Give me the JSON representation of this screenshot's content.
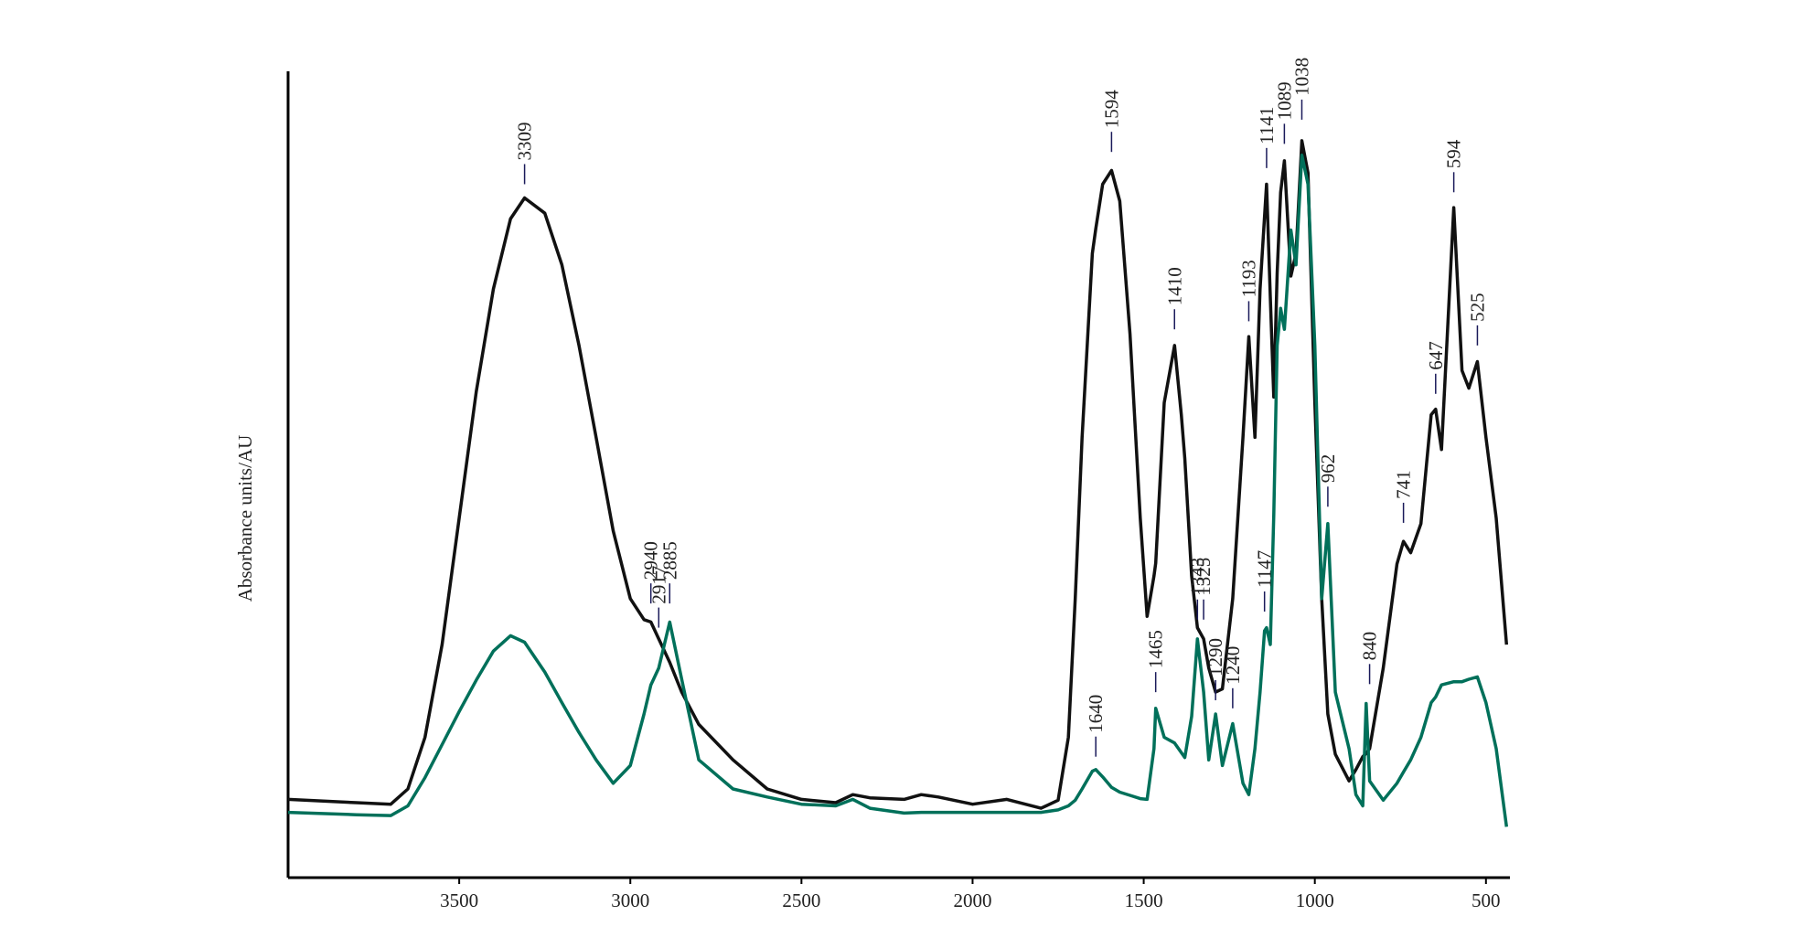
{
  "chart_data": {
    "type": "line",
    "y_label": "Absorbance  units/AU",
    "xlim": [
      4000,
      430
    ],
    "xticks": [
      3500,
      3000,
      2500,
      2000,
      1500,
      1000,
      500
    ],
    "ylim": [
      0,
      100
    ],
    "x": [
      4000,
      3800,
      3700,
      3650,
      3600,
      3550,
      3500,
      3450,
      3400,
      3350,
      3309,
      3250,
      3200,
      3150,
      3100,
      3050,
      3000,
      2960,
      2940,
      2917,
      2885,
      2850,
      2800,
      2700,
      2600,
      2500,
      2400,
      2350,
      2300,
      2200,
      2150,
      2100,
      2000,
      1900,
      1800,
      1750,
      1720,
      1700,
      1680,
      1650,
      1640,
      1620,
      1594,
      1570,
      1540,
      1510,
      1490,
      1470,
      1465,
      1440,
      1410,
      1390,
      1380,
      1360,
      1343,
      1325,
      1310,
      1290,
      1270,
      1240,
      1210,
      1193,
      1175,
      1160,
      1147,
      1141,
      1130,
      1120,
      1110,
      1100,
      1089,
      1070,
      1055,
      1038,
      1020,
      1000,
      980,
      962,
      940,
      900,
      880,
      860,
      850,
      840,
      800,
      760,
      741,
      720,
      690,
      660,
      647,
      630,
      594,
      570,
      550,
      525,
      500,
      470,
      440
    ],
    "series": [
      {
        "color": "#111111",
        "values": [
          9.7,
          9.3,
          9.1,
          11,
          17.4,
          28.9,
          44.6,
          60.3,
          73,
          81.7,
          84.3,
          82.4,
          76,
          66,
          54.6,
          43,
          34.6,
          32,
          31.7,
          29.6,
          26.7,
          23,
          19,
          14.6,
          11,
          9.7,
          9.3,
          10.3,
          9.9,
          9.7,
          10.3,
          10,
          9.1,
          9.7,
          8.6,
          9.6,
          17.4,
          34.6,
          54.6,
          77.4,
          80.5,
          86,
          87.7,
          83.9,
          67.4,
          44.6,
          32.4,
          37.4,
          39,
          58.9,
          66,
          57.4,
          52,
          37.4,
          31,
          29.6,
          26,
          23,
          23.4,
          34.6,
          54.6,
          67.1,
          54.6,
          73,
          82,
          86,
          72,
          59.6,
          75,
          85,
          88.9,
          74.6,
          77.4,
          91.4,
          87.4,
          58.9,
          34.6,
          20.3,
          15.3,
          12,
          13.4,
          15,
          15.4,
          16,
          26,
          38.9,
          41.7,
          40.3,
          43.9,
          57.4,
          58.1,
          53.1,
          83.1,
          62.9,
          60.7,
          64,
          54.6,
          44.6,
          28.9
        ]
      },
      {
        "color": "#00705a",
        "values": [
          8.1,
          7.8,
          7.7,
          8.9,
          12.4,
          16.5,
          20.6,
          24.5,
          28.1,
          30,
          29.2,
          25.5,
          21.7,
          18,
          14.6,
          11.7,
          13.9,
          20.3,
          23.9,
          26,
          31.7,
          24.6,
          14.6,
          11,
          10,
          9.1,
          8.9,
          9.7,
          8.6,
          8,
          8.1,
          8.1,
          8.1,
          8.1,
          8.1,
          8.4,
          8.9,
          9.6,
          11,
          13.2,
          13.4,
          12.5,
          11.2,
          10.6,
          10.2,
          9.8,
          9.7,
          16,
          21,
          17.4,
          16.7,
          15.5,
          14.9,
          20,
          29.6,
          23,
          14.6,
          20.3,
          13.9,
          19.1,
          11.7,
          10.3,
          16,
          23,
          30.6,
          31,
          28.9,
          45,
          66,
          70.6,
          68,
          80.3,
          76,
          89.6,
          86,
          66,
          34.6,
          43.9,
          23,
          16,
          10.3,
          8.9,
          21.6,
          12,
          9.6,
          11.7,
          13.1,
          14.6,
          17.4,
          21.7,
          22.4,
          23.9,
          24.3,
          24.3,
          24.6,
          24.9,
          21.7,
          16,
          6.3
        ]
      }
    ],
    "annotations": [
      {
        "text": "3309",
        "x": 3309,
        "y": 86
      },
      {
        "text": "2940",
        "x": 2940,
        "y": 34
      },
      {
        "text": "2917",
        "x": 2917,
        "y": 31
      },
      {
        "text": "2885",
        "x": 2885,
        "y": 34
      },
      {
        "text": "1594",
        "x": 1594,
        "y": 90
      },
      {
        "text": "1410",
        "x": 1410,
        "y": 68
      },
      {
        "text": "1193",
        "x": 1193,
        "y": 69
      },
      {
        "text": "1141",
        "x": 1141,
        "y": 88
      },
      {
        "text": "1089",
        "x": 1089,
        "y": 91
      },
      {
        "text": "1038",
        "x": 1038,
        "y": 94
      },
      {
        "text": "962",
        "x": 962,
        "y": 46
      },
      {
        "text": "741",
        "x": 741,
        "y": 44
      },
      {
        "text": "647",
        "x": 647,
        "y": 60
      },
      {
        "text": "594",
        "x": 594,
        "y": 85
      },
      {
        "text": "525",
        "x": 525,
        "y": 66
      },
      {
        "text": "1640",
        "x": 1640,
        "y": 15
      },
      {
        "text": "1465",
        "x": 1465,
        "y": 23
      },
      {
        "text": "1343",
        "x": 1343,
        "y": 32
      },
      {
        "text": "1325",
        "x": 1325,
        "y": 32
      },
      {
        "text": "1290",
        "x": 1290,
        "y": 22
      },
      {
        "text": "1240",
        "x": 1240,
        "y": 21
      },
      {
        "text": "1147",
        "x": 1147,
        "y": 33
      },
      {
        "text": "840",
        "x": 840,
        "y": 24
      }
    ]
  }
}
